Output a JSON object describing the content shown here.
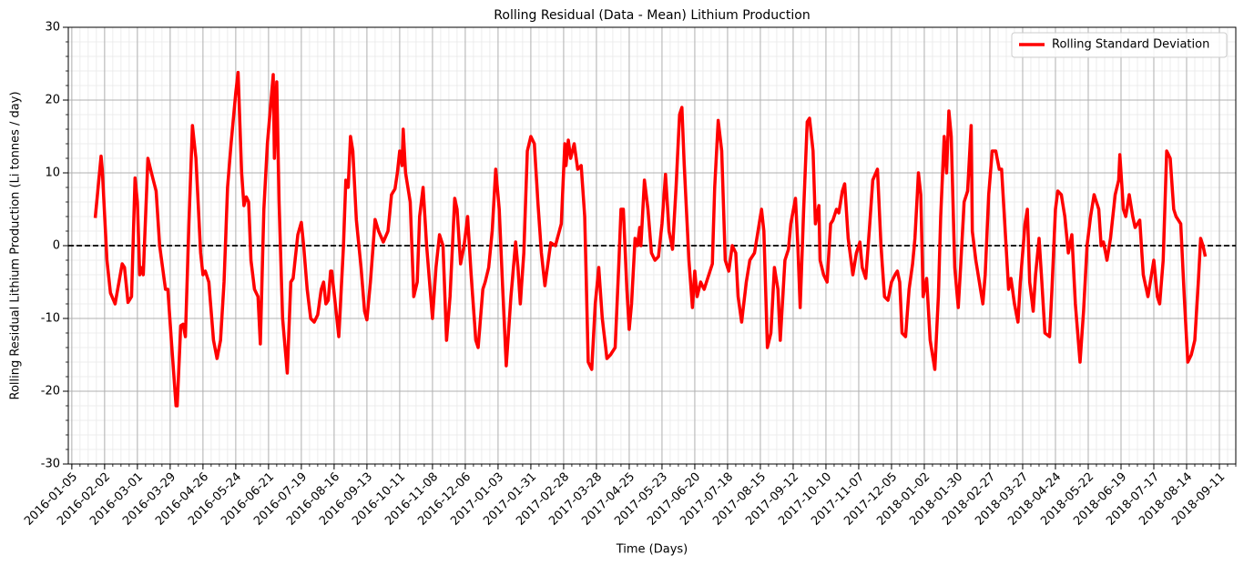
{
  "chart_data": {
    "type": "line",
    "title": "Rolling Residual (Data - Mean) Lithium Production",
    "x_label": "Time (Days)",
    "y_label": "Rolling Residual Lithium Production (Li tonnes / day)",
    "xlim": [
      "2016-01-02",
      "2018-09-25"
    ],
    "ylim": [
      -30,
      30
    ],
    "xticks": [
      "2016-01-05",
      "2016-02-02",
      "2016-03-01",
      "2016-03-29",
      "2016-04-26",
      "2016-05-24",
      "2016-06-21",
      "2016-07-19",
      "2016-08-16",
      "2016-09-13",
      "2016-10-11",
      "2016-11-08",
      "2016-12-06",
      "2017-01-03",
      "2017-01-31",
      "2017-02-28",
      "2017-03-28",
      "2017-04-25",
      "2017-05-23",
      "2017-06-20",
      "2017-07-18",
      "2017-08-15",
      "2017-09-12",
      "2017-10-10",
      "2017-11-07",
      "2017-12-05",
      "2018-01-02",
      "2018-01-30",
      "2018-02-27",
      "2018-03-27",
      "2018-04-24",
      "2018-05-22",
      "2018-06-19",
      "2018-07-17",
      "2018-08-14",
      "2018-09-11"
    ],
    "yticks": [
      -30,
      -20,
      -10,
      0,
      10,
      20,
      30
    ],
    "grid": true,
    "minor_grid": true,
    "hline": 0,
    "legend": "upper right",
    "x": [
      "2016-01-25",
      "2016-01-30",
      "2016-01-31",
      "2016-02-04",
      "2016-02-07",
      "2016-02-11",
      "2016-02-17",
      "2016-02-19",
      "2016-02-22",
      "2016-02-25",
      "2016-02-28",
      "2016-03-01",
      "2016-03-03",
      "2016-03-04",
      "2016-03-06",
      "2016-03-10",
      "2016-03-13",
      "2016-03-17",
      "2016-03-20",
      "2016-03-25",
      "2016-03-27",
      "2016-03-30",
      "2016-04-03",
      "2016-04-04",
      "2016-04-07",
      "2016-04-09",
      "2016-04-11",
      "2016-04-14",
      "2016-04-17",
      "2016-04-20",
      "2016-04-24",
      "2016-04-26",
      "2016-04-28",
      "2016-05-01",
      "2016-05-05",
      "2016-05-08",
      "2016-05-11",
      "2016-05-14",
      "2016-05-17",
      "2016-05-20",
      "2016-05-24",
      "2016-05-26",
      "2016-05-29",
      "2016-05-31",
      "2016-06-02",
      "2016-06-04",
      "2016-06-06",
      "2016-06-09",
      "2016-06-12",
      "2016-06-14",
      "2016-06-17",
      "2016-06-20",
      "2016-06-25",
      "2016-06-26",
      "2016-06-28",
      "2016-06-30",
      "2016-07-03",
      "2016-07-07",
      "2016-07-10",
      "2016-07-12",
      "2016-07-16",
      "2016-07-19",
      "2016-07-21",
      "2016-07-24",
      "2016-07-27",
      "2016-07-30",
      "2016-08-02",
      "2016-08-05",
      "2016-08-07",
      "2016-08-09",
      "2016-08-11",
      "2016-08-13",
      "2016-08-14",
      "2016-08-17",
      "2016-08-20",
      "2016-08-24",
      "2016-08-26",
      "2016-08-28",
      "2016-08-30",
      "2016-09-01",
      "2016-09-04",
      "2016-09-08",
      "2016-09-11",
      "2016-09-13",
      "2016-09-16",
      "2016-09-20",
      "2016-09-23",
      "2016-09-27",
      "2016-10-01",
      "2016-10-04",
      "2016-10-07",
      "2016-10-09",
      "2016-10-11",
      "2016-10-13",
      "2016-10-14",
      "2016-10-16",
      "2016-10-20",
      "2016-10-23",
      "2016-10-26",
      "2016-10-28",
      "2016-10-31",
      "2016-11-03",
      "2016-11-08",
      "2016-11-11",
      "2016-11-14",
      "2016-11-17",
      "2016-11-20",
      "2016-11-23",
      "2016-11-27",
      "2016-11-29",
      "2016-12-02",
      "2016-12-05",
      "2016-12-08",
      "2016-12-11",
      "2016-12-15",
      "2016-12-17",
      "2016-12-21",
      "2016-12-23",
      "2016-12-26",
      "2016-12-29",
      "2017-01-01",
      "2017-01-04",
      "2017-01-07",
      "2017-01-10",
      "2017-01-14",
      "2017-01-18",
      "2017-01-20",
      "2017-01-22",
      "2017-01-25",
      "2017-01-28",
      "2017-01-31",
      "2017-02-03",
      "2017-02-06",
      "2017-02-09",
      "2017-02-12",
      "2017-02-17",
      "2017-02-21",
      "2017-02-26",
      "2017-03-01",
      "2017-03-02",
      "2017-03-04",
      "2017-03-06",
      "2017-03-09",
      "2017-03-12",
      "2017-03-15",
      "2017-03-18",
      "2017-03-21",
      "2017-03-24",
      "2017-03-27",
      "2017-03-30",
      "2017-04-02",
      "2017-04-06",
      "2017-04-09",
      "2017-04-13",
      "2017-04-16",
      "2017-04-18",
      "2017-04-20",
      "2017-04-23",
      "2017-04-25",
      "2017-04-27",
      "2017-04-30",
      "2017-05-02",
      "2017-05-04",
      "2017-05-05",
      "2017-05-08",
      "2017-05-11",
      "2017-05-14",
      "2017-05-17",
      "2017-05-20",
      "2017-05-23",
      "2017-05-26",
      "2017-05-29",
      "2017-06-01",
      "2017-06-04",
      "2017-06-07",
      "2017-06-09",
      "2017-06-11",
      "2017-06-15",
      "2017-06-18",
      "2017-06-20",
      "2017-06-22",
      "2017-06-25",
      "2017-06-28",
      "2017-07-02",
      "2017-07-05",
      "2017-07-07",
      "2017-07-10",
      "2017-07-13",
      "2017-07-16",
      "2017-07-19",
      "2017-07-22",
      "2017-07-25",
      "2017-07-27",
      "2017-07-30",
      "2017-08-03",
      "2017-08-06",
      "2017-08-10",
      "2017-08-13",
      "2017-08-16",
      "2017-08-18",
      "2017-08-21",
      "2017-08-24",
      "2017-08-27",
      "2017-08-30",
      "2017-09-01",
      "2017-09-05",
      "2017-09-08",
      "2017-09-10",
      "2017-09-14",
      "2017-09-16",
      "2017-09-18",
      "2017-09-21",
      "2017-09-24",
      "2017-09-26",
      "2017-09-29",
      "2017-10-01",
      "2017-10-04",
      "2017-10-05",
      "2017-10-08",
      "2017-10-11",
      "2017-10-14",
      "2017-10-16",
      "2017-10-19",
      "2017-10-21",
      "2017-10-24",
      "2017-10-26",
      "2017-10-29",
      "2017-11-02",
      "2017-11-05",
      "2017-11-08",
      "2017-11-10",
      "2017-11-13",
      "2017-11-16",
      "2017-11-19",
      "2017-11-23",
      "2017-11-26",
      "2017-11-29",
      "2017-12-02",
      "2017-12-05",
      "2017-12-08",
      "2017-12-10",
      "2017-12-12",
      "2017-12-14",
      "2017-12-17",
      "2017-12-20",
      "2017-12-23",
      "2017-12-25",
      "2017-12-28",
      "2017-12-30",
      "2018-01-01",
      "2018-01-04",
      "2018-01-07",
      "2018-01-11",
      "2018-01-14",
      "2018-01-16",
      "2018-01-19",
      "2018-01-21",
      "2018-01-23",
      "2018-01-25",
      "2018-01-28",
      "2018-01-31",
      "2018-02-02",
      "2018-02-05",
      "2018-02-08",
      "2018-02-11",
      "2018-02-12",
      "2018-02-15",
      "2018-02-18",
      "2018-02-21",
      "2018-02-23",
      "2018-02-26",
      "2018-03-01",
      "2018-03-04",
      "2018-03-07",
      "2018-03-09",
      "2018-03-11",
      "2018-03-15",
      "2018-03-17",
      "2018-03-20",
      "2018-03-23",
      "2018-03-25",
      "2018-03-29",
      "2018-03-31",
      "2018-04-02",
      "2018-04-05",
      "2018-04-07",
      "2018-04-10",
      "2018-04-12",
      "2018-04-15",
      "2018-04-19",
      "2018-04-21",
      "2018-04-24",
      "2018-04-26",
      "2018-04-29",
      "2018-05-02",
      "2018-05-05",
      "2018-05-08",
      "2018-05-11",
      "2018-05-15",
      "2018-05-18",
      "2018-05-21",
      "2018-05-24",
      "2018-05-27",
      "2018-05-31",
      "2018-06-02",
      "2018-06-04",
      "2018-06-07",
      "2018-06-10",
      "2018-06-14",
      "2018-06-17",
      "2018-06-18",
      "2018-06-21",
      "2018-06-23",
      "2018-06-26",
      "2018-06-29",
      "2018-07-01",
      "2018-07-05",
      "2018-07-08",
      "2018-07-12",
      "2018-07-14",
      "2018-07-17",
      "2018-07-20",
      "2018-07-22",
      "2018-07-25",
      "2018-07-28",
      "2018-07-31",
      "2018-08-03",
      "2018-08-05",
      "2018-08-09",
      "2018-08-12",
      "2018-08-15",
      "2018-08-18",
      "2018-08-21",
      "2018-08-24",
      "2018-08-26",
      "2018-08-28",
      "2018-08-30"
    ],
    "series": [
      {
        "name": "Rolling Standard Deviation",
        "color": "#ff0000",
        "values": [
          3.8,
          12.3,
          10.5,
          -2,
          -6.5,
          -8,
          -2.5,
          -3,
          -7.8,
          -7,
          9.3,
          6,
          -4,
          -3,
          -4,
          12,
          10,
          7.5,
          0,
          -6,
          -6,
          -13,
          -22,
          -22,
          -11,
          -10.8,
          -12.5,
          3,
          16.5,
          12,
          -1,
          -4,
          -3.5,
          -5,
          -13,
          -15.5,
          -13,
          -5,
          8,
          14,
          21,
          23.8,
          10,
          5.5,
          6.7,
          6,
          -2,
          -6,
          -7,
          -13.5,
          5,
          14,
          23.5,
          12,
          22.5,
          6,
          -10,
          -17.5,
          -5,
          -4.5,
          1.5,
          3.2,
          0,
          -6,
          -10,
          -10.5,
          -9.5,
          -6,
          -5,
          -8,
          -7.5,
          -3.5,
          -3.5,
          -8,
          -12.5,
          0,
          9,
          8,
          15,
          13,
          3.5,
          -3,
          -9,
          -10.2,
          -5,
          3.6,
          2,
          0.5,
          2,
          7,
          7.8,
          10,
          13,
          11,
          16,
          10,
          6,
          -7,
          -5,
          4,
          8,
          0,
          -10,
          -3,
          1.5,
          0,
          -13,
          -7,
          6.5,
          5,
          -2.5,
          0,
          4,
          -4,
          -13,
          -14,
          -6,
          -5,
          -3,
          2,
          10.5,
          5,
          -6,
          -16.5,
          -7,
          0.5,
          -3,
          -8,
          -1,
          13,
          15,
          14,
          6,
          -1,
          -5.5,
          0.4,
          0,
          3,
          14,
          11,
          14.5,
          12,
          14,
          10.5,
          11,
          4,
          -16,
          -17,
          -8,
          -3,
          -10,
          -15.5,
          -15,
          -14,
          -3,
          5,
          5,
          -6,
          -11.5,
          -8,
          1,
          0,
          2.5,
          0,
          9,
          5,
          -1,
          -2,
          -1.5,
          3,
          9.8,
          2,
          -0.5,
          8,
          18,
          19,
          11,
          -2,
          -8.5,
          -3.5,
          -7,
          -5,
          -6,
          -4,
          -2.5,
          8,
          17.2,
          13,
          -2,
          -3.5,
          0,
          -1,
          -7,
          -10.5,
          -5,
          -2,
          -1,
          2,
          5,
          2,
          -14,
          -12,
          -3,
          -6,
          -13,
          -2,
          -0.5,
          3,
          6.5,
          0,
          -8.5,
          5,
          17,
          17.5,
          13,
          3,
          5.5,
          -2,
          -4,
          -5,
          3,
          3.5,
          5,
          4.5,
          7.5,
          8.5,
          1,
          -4,
          -1,
          0.5,
          -3,
          -4.5,
          2,
          9,
          10.5,
          0,
          -7,
          -7.5,
          -5,
          -4,
          -3.5,
          -5,
          -12,
          -12.5,
          -6,
          -2.5,
          1,
          10,
          7,
          -7,
          -4.5,
          -13,
          -17,
          -7,
          4,
          15,
          10,
          18.5,
          15,
          -3,
          -8.5,
          -3,
          6,
          7.5,
          16.5,
          2,
          -2,
          -5,
          -8,
          -4,
          7,
          13,
          13,
          10.5,
          10.5,
          5,
          -6,
          -4.5,
          -8,
          -10.5,
          -5,
          3,
          5,
          -5,
          -9,
          -4,
          1,
          -4,
          -12,
          -12.5,
          -6,
          5,
          7.5,
          7,
          4,
          -1,
          1.5,
          -8,
          -16,
          -9,
          0,
          4,
          7,
          5,
          0,
          0.5,
          -2,
          1,
          7,
          9,
          12.5,
          5,
          4,
          7,
          4,
          2.5,
          3.5,
          -4,
          -7,
          -5,
          -2,
          -7,
          -8,
          -2,
          13,
          12,
          5,
          4,
          3,
          -7,
          -16,
          -15,
          -13,
          -5,
          1,
          0,
          -1.5
        ]
      }
    ]
  }
}
